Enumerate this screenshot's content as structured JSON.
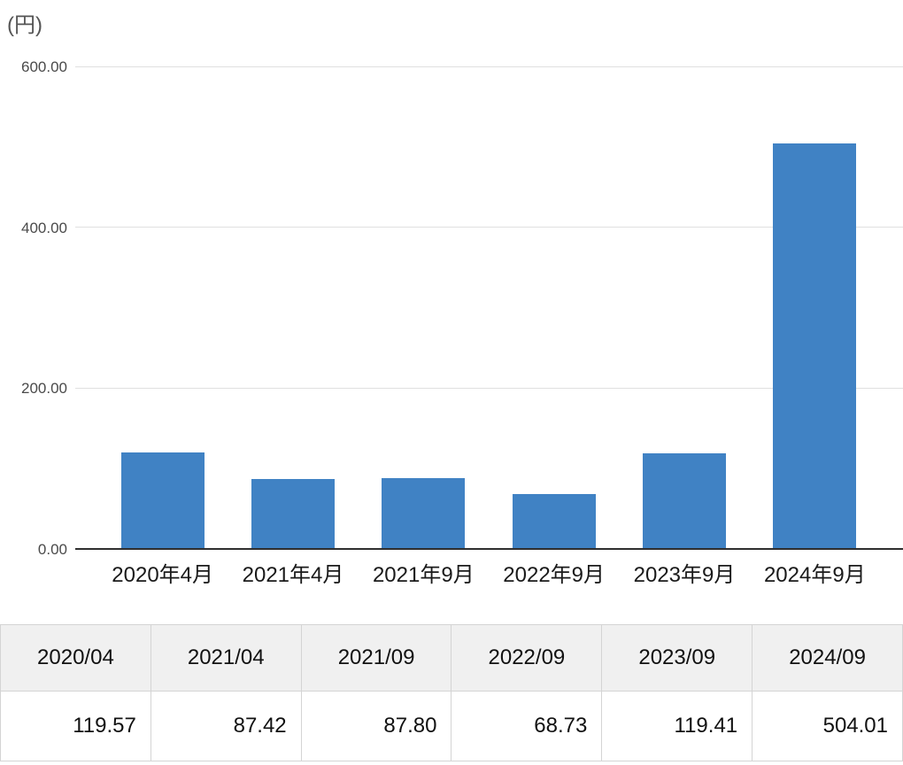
{
  "chart_data": {
    "type": "bar",
    "categories": [
      "2020年4月",
      "2021年4月",
      "2021年9月",
      "2022年9月",
      "2023年9月",
      "2024年9月"
    ],
    "values": [
      119.57,
      87.42,
      87.8,
      68.73,
      119.41,
      504.01
    ],
    "title": "",
    "xlabel": "",
    "ylabel": "(円)",
    "ylim": [
      0,
      600
    ],
    "y_ticks": [
      {
        "value": 600,
        "label": "600.00"
      },
      {
        "value": 400,
        "label": "400.00"
      },
      {
        "value": 200,
        "label": "200.00"
      },
      {
        "value": 0,
        "label": "0.00"
      }
    ],
    "grid": true,
    "legend": false,
    "bar_color": "#4082c4",
    "gridline_color": "#e0e0e0",
    "axis_color": "#2f2f2f"
  },
  "table": {
    "headers": [
      "2020/04",
      "2021/04",
      "2021/09",
      "2022/09",
      "2023/09",
      "2024/09"
    ],
    "values": [
      "119.57",
      "87.42",
      "87.80",
      "68.73",
      "119.41",
      "504.01"
    ]
  }
}
